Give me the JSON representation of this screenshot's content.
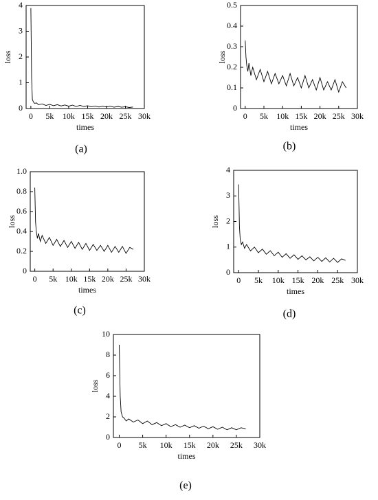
{
  "chart_data": [
    {
      "type": "line",
      "caption": "(a)",
      "xlabel": "times",
      "ylabel": "loss",
      "color": "#000000",
      "xlim": [
        -1250,
        30000
      ],
      "xticks": [
        0,
        {
          "value": 5000,
          "label": "5k"
        },
        {
          "value": 10000,
          "label": "10k"
        },
        {
          "value": 15000,
          "label": "15k"
        },
        {
          "value": 20000,
          "label": "20k"
        },
        {
          "value": 25000,
          "label": "25k"
        },
        {
          "value": 30000,
          "label": "30k"
        }
      ],
      "ylim": [
        0,
        4
      ],
      "yticks": [
        0,
        1,
        2,
        3,
        4
      ],
      "x": [
        0,
        200,
        400,
        700,
        1000,
        1500,
        2000,
        3000,
        4000,
        5000,
        6000,
        7000,
        8000,
        9000,
        10000,
        11000,
        12000,
        13000,
        14000,
        15000,
        16000,
        17000,
        18000,
        19000,
        20000,
        21000,
        22000,
        23000,
        24000,
        25000,
        26000,
        27000
      ],
      "values": [
        3.9,
        1.2,
        0.35,
        0.25,
        0.2,
        0.22,
        0.15,
        0.18,
        0.12,
        0.16,
        0.11,
        0.15,
        0.1,
        0.14,
        0.09,
        0.13,
        0.08,
        0.12,
        0.08,
        0.11,
        0.07,
        0.1,
        0.06,
        0.09,
        0.06,
        0.09,
        0.05,
        0.08,
        0.05,
        0.07,
        0.04,
        0.06
      ]
    },
    {
      "type": "line",
      "caption": "(b)",
      "xlabel": "times",
      "ylabel": "loss",
      "color": "#000000",
      "xlim": [
        -1250,
        30000
      ],
      "xticks": [
        0,
        {
          "value": 5000,
          "label": "5k"
        },
        {
          "value": 10000,
          "label": "10k"
        },
        {
          "value": 15000,
          "label": "15k"
        },
        {
          "value": 20000,
          "label": "20k"
        },
        {
          "value": 25000,
          "label": "25k"
        },
        {
          "value": 30000,
          "label": "30k"
        }
      ],
      "ylim": [
        0,
        0.5
      ],
      "yticks": [
        0,
        0.1,
        0.2,
        0.3,
        0.4,
        0.5
      ],
      "x": [
        0,
        200,
        400,
        700,
        1000,
        1500,
        2000,
        3000,
        4000,
        5000,
        6000,
        7000,
        8000,
        9000,
        10000,
        11000,
        12000,
        13000,
        14000,
        15000,
        16000,
        17000,
        18000,
        19000,
        20000,
        21000,
        22000,
        23000,
        24000,
        25000,
        26000,
        27000
      ],
      "values": [
        0.33,
        0.25,
        0.21,
        0.18,
        0.22,
        0.16,
        0.2,
        0.14,
        0.19,
        0.13,
        0.18,
        0.12,
        0.17,
        0.12,
        0.16,
        0.11,
        0.17,
        0.11,
        0.15,
        0.1,
        0.16,
        0.1,
        0.14,
        0.09,
        0.15,
        0.09,
        0.13,
        0.09,
        0.14,
        0.08,
        0.13,
        0.1
      ]
    },
    {
      "type": "line",
      "caption": "(c)",
      "xlabel": "times",
      "ylabel": "loss",
      "color": "#000000",
      "xlim": [
        -1250,
        30000
      ],
      "xticks": [
        0,
        {
          "value": 5000,
          "label": "5k"
        },
        {
          "value": 10000,
          "label": "10k"
        },
        {
          "value": 15000,
          "label": "15k"
        },
        {
          "value": 20000,
          "label": "20k"
        },
        {
          "value": 25000,
          "label": "25k"
        },
        {
          "value": 30000,
          "label": "30k"
        }
      ],
      "ylim": [
        0,
        1
      ],
      "yticks": [
        0,
        0.2,
        0.4,
        0.6,
        0.8,
        {
          "value": 1,
          "label": "1.0"
        }
      ],
      "x": [
        0,
        200,
        400,
        700,
        1000,
        1500,
        2000,
        3000,
        4000,
        5000,
        6000,
        7000,
        8000,
        9000,
        10000,
        11000,
        12000,
        13000,
        14000,
        15000,
        16000,
        17000,
        18000,
        19000,
        20000,
        21000,
        22000,
        23000,
        24000,
        25000,
        26000,
        27000
      ],
      "values": [
        0.84,
        0.5,
        0.4,
        0.33,
        0.38,
        0.3,
        0.36,
        0.28,
        0.34,
        0.26,
        0.32,
        0.25,
        0.31,
        0.24,
        0.3,
        0.23,
        0.29,
        0.22,
        0.28,
        0.21,
        0.27,
        0.21,
        0.26,
        0.2,
        0.26,
        0.19,
        0.25,
        0.19,
        0.25,
        0.18,
        0.24,
        0.22
      ]
    },
    {
      "type": "line",
      "caption": "(d)",
      "xlabel": "times",
      "ylabel": "loss",
      "color": "#000000",
      "xlim": [
        -1250,
        30000
      ],
      "xticks": [
        0,
        {
          "value": 5000,
          "label": "5k"
        },
        {
          "value": 10000,
          "label": "10k"
        },
        {
          "value": 15000,
          "label": "15k"
        },
        {
          "value": 20000,
          "label": "20k"
        },
        {
          "value": 25000,
          "label": "25k"
        },
        {
          "value": 30000,
          "label": "30k"
        }
      ],
      "ylim": [
        0,
        4
      ],
      "yticks": [
        0,
        1,
        2,
        3,
        4
      ],
      "x": [
        0,
        200,
        400,
        700,
        1000,
        1500,
        2000,
        3000,
        4000,
        5000,
        6000,
        7000,
        8000,
        9000,
        10000,
        11000,
        12000,
        13000,
        14000,
        15000,
        16000,
        17000,
        18000,
        19000,
        20000,
        21000,
        22000,
        23000,
        24000,
        25000,
        26000,
        27000
      ],
      "values": [
        3.45,
        1.8,
        1.3,
        1.1,
        1.2,
        0.95,
        1.1,
        0.85,
        1.0,
        0.78,
        0.92,
        0.72,
        0.86,
        0.66,
        0.8,
        0.6,
        0.74,
        0.56,
        0.7,
        0.52,
        0.66,
        0.5,
        0.62,
        0.46,
        0.6,
        0.44,
        0.58,
        0.42,
        0.56,
        0.4,
        0.54,
        0.48
      ]
    },
    {
      "type": "line",
      "caption": "(e)",
      "xlabel": "times",
      "ylabel": "loss",
      "color": "#000000",
      "xlim": [
        -1250,
        30000
      ],
      "xticks": [
        0,
        {
          "value": 5000,
          "label": "5k"
        },
        {
          "value": 10000,
          "label": "10k"
        },
        {
          "value": 15000,
          "label": "15k"
        },
        {
          "value": 20000,
          "label": "20k"
        },
        {
          "value": 25000,
          "label": "25k"
        },
        {
          "value": 30000,
          "label": "30k"
        }
      ],
      "ylim": [
        0,
        10
      ],
      "yticks": [
        0,
        2,
        4,
        6,
        8,
        10
      ],
      "x": [
        0,
        200,
        400,
        700,
        1000,
        1500,
        2000,
        3000,
        4000,
        5000,
        6000,
        7000,
        8000,
        9000,
        10000,
        11000,
        12000,
        13000,
        14000,
        15000,
        16000,
        17000,
        18000,
        19000,
        20000,
        21000,
        22000,
        23000,
        24000,
        25000,
        26000,
        27000
      ],
      "values": [
        9.0,
        4.0,
        2.5,
        2.0,
        1.9,
        1.6,
        1.8,
        1.5,
        1.7,
        1.35,
        1.6,
        1.25,
        1.45,
        1.15,
        1.35,
        1.05,
        1.25,
        1.0,
        1.2,
        0.95,
        1.15,
        0.9,
        1.1,
        0.85,
        1.05,
        0.8,
        1.0,
        0.75,
        0.95,
        0.75,
        0.95,
        0.85
      ]
    }
  ]
}
